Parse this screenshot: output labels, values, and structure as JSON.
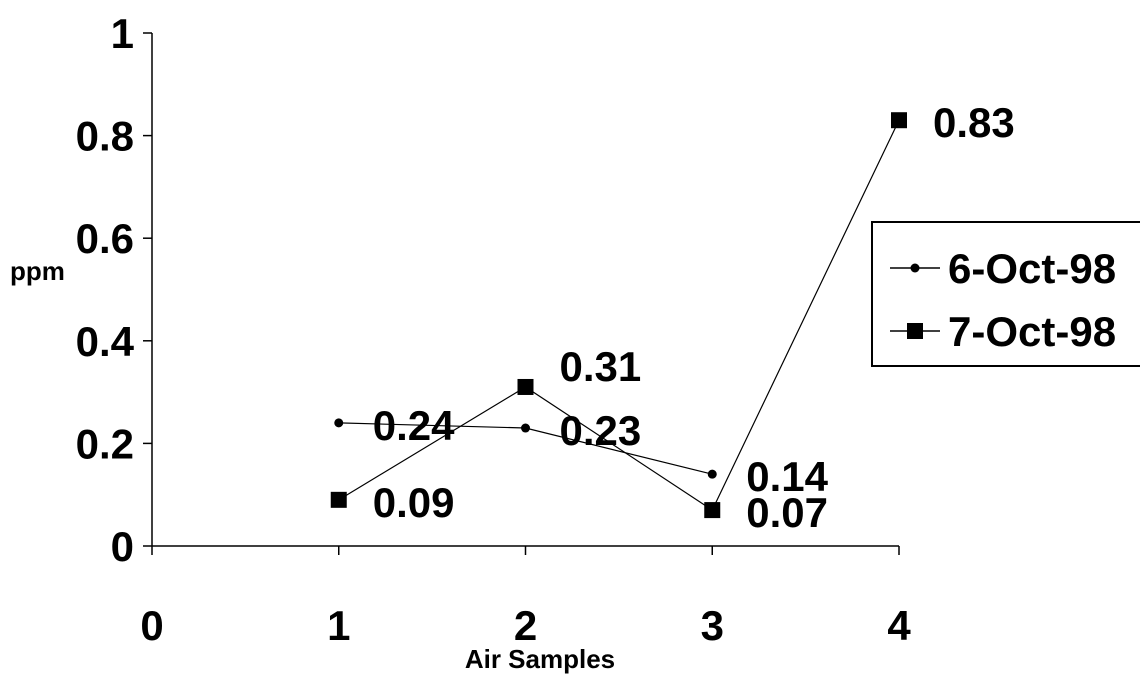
{
  "chart_data": {
    "type": "line",
    "title": "",
    "xlabel": "Air Samples",
    "ylabel": "ppm",
    "xlim": [
      0,
      4
    ],
    "ylim": [
      0,
      1
    ],
    "x_ticks": [
      "0",
      "1",
      "2",
      "3",
      "4"
    ],
    "y_ticks": [
      "0",
      "0.2",
      "0.4",
      "0.6",
      "0.8",
      "1"
    ],
    "grid": false,
    "legend_position": "right",
    "series": [
      {
        "name": "6-Oct-98",
        "marker": "circle",
        "color": "#000000",
        "x": [
          1,
          2,
          3
        ],
        "values": [
          0.24,
          0.23,
          0.14
        ],
        "labels": [
          "0.24",
          "0.23",
          "0.14"
        ]
      },
      {
        "name": "7-Oct-98",
        "marker": "square",
        "color": "#000000",
        "x": [
          1,
          2,
          3,
          4
        ],
        "values": [
          0.09,
          0.31,
          0.07,
          0.83
        ],
        "labels": [
          "0.09",
          "0.31",
          "0.07",
          "0.83"
        ]
      }
    ]
  }
}
